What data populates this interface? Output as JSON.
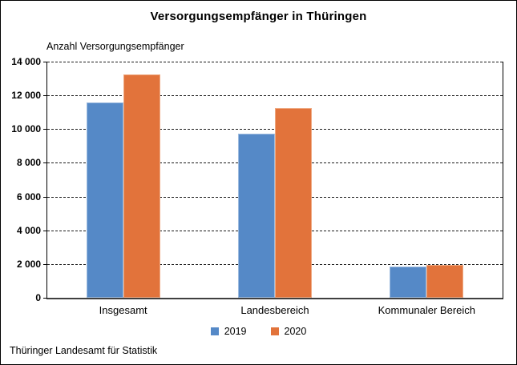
{
  "chart_data": {
    "type": "bar",
    "title": "Versorgungsempfänger in Thüringen",
    "y_axis_title": "Anzahl Versorgungsempfänger",
    "categories": [
      "Insgesamt",
      "Landesbereich",
      "Kommunaler Bereich"
    ],
    "series": [
      {
        "name": "2019",
        "color": "#5589C7",
        "values": [
          11600,
          9750,
          1850
        ]
      },
      {
        "name": "2020",
        "color": "#E2733B",
        "values": [
          13250,
          11250,
          1950
        ]
      }
    ],
    "ylim": [
      0,
      14000
    ],
    "ytick_step": 2000,
    "ytick_labels": [
      "0",
      "2 000",
      "4 000",
      "6 000",
      "8 000",
      "10 000",
      "12 000",
      "14 000"
    ],
    "grid": "horizontal-dashed",
    "legend_position": "bottom",
    "source": "Thüringer Landesamt für Statistik"
  }
}
